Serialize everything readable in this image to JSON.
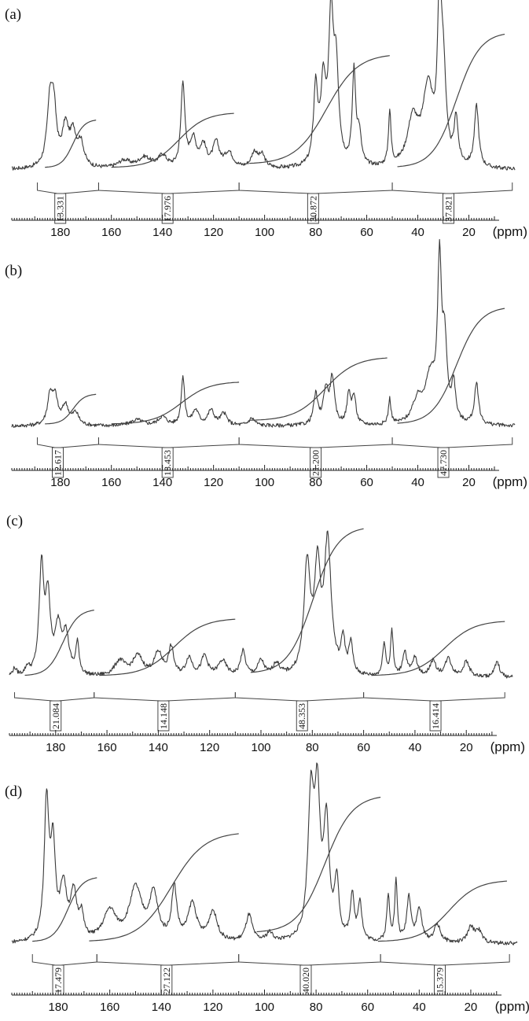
{
  "figure": {
    "unit": "(ppm)"
  },
  "chart_data": [
    {
      "type": "line",
      "label": "(a)",
      "xlabel": "(ppm)",
      "xlim": [
        199,
        2
      ],
      "x_reversed": true,
      "ticks": [
        180,
        160,
        140,
        120,
        100,
        80,
        60,
        40,
        20
      ],
      "peaks": [
        {
          "x": 184,
          "h": 0.42,
          "w": 1.4
        },
        {
          "x": 182.5,
          "h": 0.3,
          "w": 1.2
        },
        {
          "x": 178,
          "h": 0.25,
          "w": 1.5
        },
        {
          "x": 175,
          "h": 0.2,
          "w": 1.5
        },
        {
          "x": 172,
          "h": 0.15,
          "w": 1.5
        },
        {
          "x": 155,
          "h": 0.05,
          "w": 3
        },
        {
          "x": 147,
          "h": 0.07,
          "w": 3
        },
        {
          "x": 140,
          "h": 0.08,
          "w": 2
        },
        {
          "x": 132,
          "h": 0.55,
          "w": 0.9
        },
        {
          "x": 128,
          "h": 0.18,
          "w": 1.5
        },
        {
          "x": 124,
          "h": 0.14,
          "w": 1.5
        },
        {
          "x": 119,
          "h": 0.16,
          "w": 1.5
        },
        {
          "x": 114,
          "h": 0.1,
          "w": 2
        },
        {
          "x": 104,
          "h": 0.1,
          "w": 1.5
        },
        {
          "x": 101,
          "h": 0.08,
          "w": 1.5
        },
        {
          "x": 80,
          "h": 0.5,
          "w": 1.0
        },
        {
          "x": 77,
          "h": 0.5,
          "w": 1.2
        },
        {
          "x": 74,
          "h": 0.9,
          "w": 1.1
        },
        {
          "x": 72,
          "h": 0.6,
          "w": 1.2
        },
        {
          "x": 65,
          "h": 0.6,
          "w": 0.8
        },
        {
          "x": 63,
          "h": 0.2,
          "w": 1.0
        },
        {
          "x": 51,
          "h": 0.35,
          "w": 0.6
        },
        {
          "x": 42,
          "h": 0.3,
          "w": 2.5
        },
        {
          "x": 36,
          "h": 0.5,
          "w": 2.5
        },
        {
          "x": 31.5,
          "h": 1.0,
          "w": 0.9
        },
        {
          "x": 30,
          "h": 0.55,
          "w": 1.2
        },
        {
          "x": 25,
          "h": 0.3,
          "w": 0.9
        },
        {
          "x": 17,
          "h": 0.4,
          "w": 1.0
        }
      ],
      "integrals": [
        {
          "from": 186,
          "to": 166,
          "value": "13.331",
          "rise": 0.42,
          "base": 0.02
        },
        {
          "from": 160,
          "to": 112,
          "value": "17.976",
          "rise": 0.48,
          "base": 0.02
        },
        {
          "from": 106,
          "to": 51,
          "value": "30.872",
          "rise": 0.96,
          "base": 0.05
        },
        {
          "from": 48,
          "to": 6,
          "value": "37.821",
          "rise": 1.18,
          "base": 0.02
        }
      ],
      "bracket_bounds": [
        189,
        165,
        110,
        50,
        3
      ],
      "label_positions": [
        180,
        138,
        81,
        28
      ]
    },
    {
      "type": "line",
      "label": "(b)",
      "xlabel": "(ppm)",
      "xlim": [
        199,
        2
      ],
      "x_reversed": true,
      "ticks": [
        180,
        160,
        140,
        120,
        100,
        80,
        60,
        40,
        20
      ],
      "peaks": [
        {
          "x": 184,
          "h": 0.2,
          "w": 1.2
        },
        {
          "x": 182,
          "h": 0.17,
          "w": 1.2
        },
        {
          "x": 178,
          "h": 0.13,
          "w": 1.5
        },
        {
          "x": 174,
          "h": 0.08,
          "w": 1.5
        },
        {
          "x": 150,
          "h": 0.04,
          "w": 3
        },
        {
          "x": 140,
          "h": 0.06,
          "w": 2
        },
        {
          "x": 132,
          "h": 0.32,
          "w": 0.8
        },
        {
          "x": 127,
          "h": 0.1,
          "w": 1.5
        },
        {
          "x": 121,
          "h": 0.1,
          "w": 1.5
        },
        {
          "x": 116,
          "h": 0.08,
          "w": 1.5
        },
        {
          "x": 105,
          "h": 0.05,
          "w": 1.5
        },
        {
          "x": 80,
          "h": 0.2,
          "w": 1.0
        },
        {
          "x": 76,
          "h": 0.23,
          "w": 1.2
        },
        {
          "x": 73.5,
          "h": 0.3,
          "w": 1.0
        },
        {
          "x": 67,
          "h": 0.2,
          "w": 0.9
        },
        {
          "x": 65,
          "h": 0.18,
          "w": 0.9
        },
        {
          "x": 51,
          "h": 0.17,
          "w": 0.6
        },
        {
          "x": 40,
          "h": 0.15,
          "w": 2.5
        },
        {
          "x": 35,
          "h": 0.3,
          "w": 2.5
        },
        {
          "x": 31.5,
          "h": 1.0,
          "w": 0.9
        },
        {
          "x": 29.5,
          "h": 0.5,
          "w": 1.1
        },
        {
          "x": 26,
          "h": 0.25,
          "w": 0.9
        },
        {
          "x": 17,
          "h": 0.27,
          "w": 1.0
        }
      ],
      "integrals": [
        {
          "from": 186,
          "to": 166,
          "value": "12.617",
          "rise": 0.27,
          "base": 0.02
        },
        {
          "from": 160,
          "to": 110,
          "value": "18.453",
          "rise": 0.38,
          "base": 0.02
        },
        {
          "from": 106,
          "to": 52,
          "value": "21.200",
          "rise": 0.57,
          "base": 0.05
        },
        {
          "from": 48,
          "to": 6,
          "value": "47.730",
          "rise": 1.05,
          "base": 0.02
        }
      ],
      "bracket_bounds": [
        189,
        165,
        110,
        50,
        3
      ],
      "label_positions": [
        181,
        138,
        80,
        30
      ]
    },
    {
      "type": "line",
      "label": "(c)",
      "xlabel": "(ppm)",
      "xlim": [
        198,
        2
      ],
      "x_reversed": true,
      "ticks": [
        180,
        160,
        140,
        120,
        100,
        80,
        60,
        40,
        20
      ],
      "peaks": [
        {
          "x": 196,
          "h": 0.05,
          "w": 1.0
        },
        {
          "x": 191,
          "h": 0.05,
          "w": 1.0
        },
        {
          "x": 185.5,
          "h": 0.7,
          "w": 1.1
        },
        {
          "x": 183,
          "h": 0.48,
          "w": 1.1
        },
        {
          "x": 179,
          "h": 0.3,
          "w": 1.5
        },
        {
          "x": 176,
          "h": 0.25,
          "w": 1.5
        },
        {
          "x": 171.5,
          "h": 0.2,
          "w": 0.8
        },
        {
          "x": 155,
          "h": 0.1,
          "w": 2.5
        },
        {
          "x": 148,
          "h": 0.13,
          "w": 2.5
        },
        {
          "x": 140,
          "h": 0.15,
          "w": 2
        },
        {
          "x": 135,
          "h": 0.18,
          "w": 1.2
        },
        {
          "x": 128,
          "h": 0.12,
          "w": 1.5
        },
        {
          "x": 122,
          "h": 0.13,
          "w": 1.5
        },
        {
          "x": 115,
          "h": 0.1,
          "w": 2
        },
        {
          "x": 107,
          "h": 0.16,
          "w": 1.2
        },
        {
          "x": 100,
          "h": 0.1,
          "w": 1.5
        },
        {
          "x": 94,
          "h": 0.08,
          "w": 1.5
        },
        {
          "x": 82,
          "h": 0.7,
          "w": 1.5
        },
        {
          "x": 78,
          "h": 0.65,
          "w": 1.4
        },
        {
          "x": 74,
          "h": 0.85,
          "w": 1.6
        },
        {
          "x": 68,
          "h": 0.22,
          "w": 0.9
        },
        {
          "x": 65,
          "h": 0.2,
          "w": 0.9
        },
        {
          "x": 52,
          "h": 0.22,
          "w": 0.7
        },
        {
          "x": 49,
          "h": 0.3,
          "w": 0.6
        },
        {
          "x": 44,
          "h": 0.16,
          "w": 1.0
        },
        {
          "x": 40,
          "h": 0.12,
          "w": 1.2
        },
        {
          "x": 33,
          "h": 0.1,
          "w": 1.5
        },
        {
          "x": 27,
          "h": 0.12,
          "w": 1.5
        },
        {
          "x": 20,
          "h": 0.1,
          "w": 1.5
        },
        {
          "x": 8,
          "h": 0.1,
          "w": 1.2
        }
      ],
      "integrals": [
        {
          "from": 192,
          "to": 165,
          "value": "21.084",
          "rise": 0.58,
          "base": 0.02
        },
        {
          "from": 163,
          "to": 110,
          "value": "14.148",
          "rise": 0.5,
          "base": 0.02
        },
        {
          "from": 104,
          "to": 60,
          "value": "48.353",
          "rise": 1.28,
          "base": 0.04
        },
        {
          "from": 57,
          "to": 5,
          "value": "16.414",
          "rise": 0.48,
          "base": 0.02
        }
      ],
      "bracket_bounds": [
        196,
        165,
        110,
        60,
        5
      ],
      "label_positions": [
        180,
        138,
        84,
        32
      ]
    },
    {
      "type": "line",
      "label": "(d)",
      "xlabel": "(ppm)",
      "xlim": [
        198,
        2
      ],
      "x_reversed": true,
      "ticks": [
        180,
        160,
        140,
        120,
        100,
        80,
        60,
        40,
        20
      ],
      "peaks": [
        {
          "x": 184.5,
          "h": 0.92,
          "w": 1.1
        },
        {
          "x": 182,
          "h": 0.6,
          "w": 1.1
        },
        {
          "x": 178,
          "h": 0.35,
          "w": 1.5
        },
        {
          "x": 174,
          "h": 0.3,
          "w": 1.5
        },
        {
          "x": 171,
          "h": 0.15,
          "w": 1.0
        },
        {
          "x": 160,
          "h": 0.2,
          "w": 3
        },
        {
          "x": 150,
          "h": 0.35,
          "w": 3
        },
        {
          "x": 143,
          "h": 0.3,
          "w": 2
        },
        {
          "x": 135,
          "h": 0.35,
          "w": 1.2
        },
        {
          "x": 128,
          "h": 0.25,
          "w": 2
        },
        {
          "x": 120,
          "h": 0.2,
          "w": 2
        },
        {
          "x": 106,
          "h": 0.18,
          "w": 1.5
        },
        {
          "x": 98,
          "h": 0.06,
          "w": 1.5
        },
        {
          "x": 82,
          "h": 0.92,
          "w": 1.4
        },
        {
          "x": 79.5,
          "h": 0.88,
          "w": 1.3
        },
        {
          "x": 76,
          "h": 0.75,
          "w": 1.3
        },
        {
          "x": 72,
          "h": 0.38,
          "w": 1.0
        },
        {
          "x": 66,
          "h": 0.3,
          "w": 0.9
        },
        {
          "x": 63,
          "h": 0.26,
          "w": 0.9
        },
        {
          "x": 52,
          "h": 0.3,
          "w": 0.7
        },
        {
          "x": 49,
          "h": 0.4,
          "w": 0.6
        },
        {
          "x": 44,
          "h": 0.3,
          "w": 1.0
        },
        {
          "x": 40,
          "h": 0.22,
          "w": 1.2
        },
        {
          "x": 33,
          "h": 0.12,
          "w": 1.5
        },
        {
          "x": 20,
          "h": 0.1,
          "w": 1.5
        },
        {
          "x": 17,
          "h": 0.08,
          "w": 1.5
        }
      ],
      "integrals": [
        {
          "from": 190,
          "to": 165,
          "value": "17.479",
          "rise": 0.58,
          "base": 0.02
        },
        {
          "from": 168,
          "to": 110,
          "value": "27.122",
          "rise": 0.98,
          "base": 0.02
        },
        {
          "from": 103,
          "to": 55,
          "value": "40.020",
          "rise": 1.23,
          "base": 0.1
        },
        {
          "from": 56,
          "to": 6,
          "value": "15.379",
          "rise": 0.55,
          "base": 0.02
        }
      ],
      "bracket_bounds": [
        190,
        165,
        110,
        55,
        5
      ],
      "label_positions": [
        180,
        138,
        84,
        32
      ]
    }
  ]
}
